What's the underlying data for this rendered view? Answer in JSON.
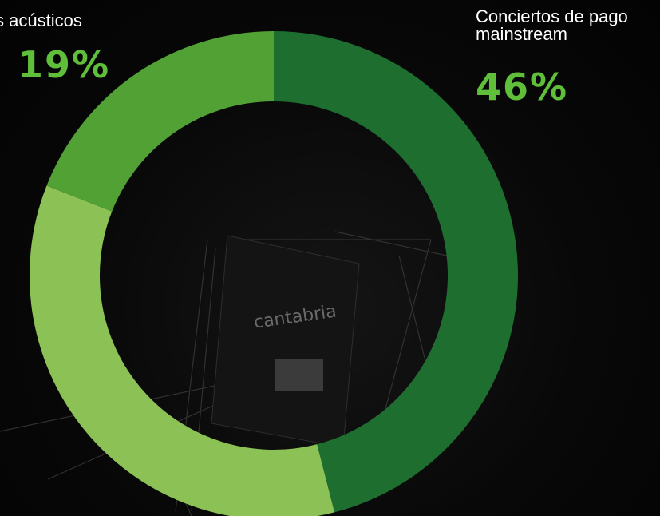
{
  "chart_data": {
    "type": "pie",
    "donut": true,
    "slices": [
      {
        "label": "Conciertos de pago mainstream",
        "value": 46,
        "value_label": "46%",
        "color": "#1e6e30"
      },
      {
        "label": "",
        "value": 35,
        "value_label": "",
        "color": "#8bc155"
      },
      {
        "label": "s acústicos",
        "value": 19,
        "value_label": "19%",
        "color": "#52a135"
      }
    ]
  },
  "background": {
    "photo_text": "cantabria"
  },
  "colors": {
    "accent": "#5fbe3a",
    "text": "#ffffff"
  }
}
